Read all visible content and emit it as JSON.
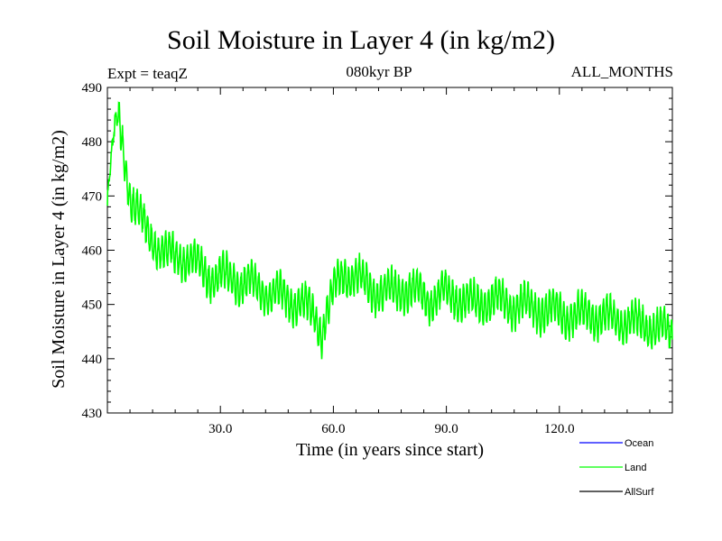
{
  "chart_data": {
    "type": "line",
    "title": "Soil Moisture in Layer 4 (in kg/m2)",
    "subtitle": "080kyr BP",
    "expt_label": "Expt = teaqZ",
    "period_label": "ALL_MONTHS",
    "xlabel": "Time (in years since start)",
    "ylabel": "Soil Moisture in Layer 4 (in kg/m2)",
    "xlim": [
      0,
      150
    ],
    "ylim": [
      430,
      490
    ],
    "x_ticks": [
      30,
      60,
      90,
      120
    ],
    "x_tick_labels": [
      "30.0",
      "60.0",
      "90.0",
      "120.0"
    ],
    "y_ticks": [
      430,
      440,
      450,
      460,
      470,
      480,
      490
    ],
    "y_tick_labels": [
      "430",
      "440",
      "450",
      "460",
      "470",
      "480",
      "490"
    ],
    "series": [
      {
        "name": "Ocean",
        "color": "#0000ff",
        "values": []
      },
      {
        "name": "Land",
        "color": "#00ff00",
        "x": [
          0,
          1,
          2,
          3,
          4,
          5,
          6,
          8,
          10,
          12,
          14,
          16,
          18,
          20,
          22,
          24,
          26,
          28,
          30,
          33,
          36,
          40,
          44,
          48,
          52,
          55,
          57,
          58,
          60,
          62,
          63,
          66,
          70,
          74,
          78,
          82,
          86,
          90,
          94,
          98,
          102,
          106,
          110,
          114,
          118,
          122,
          126,
          130,
          134,
          138,
          142,
          146,
          150
        ],
        "values": [
          469,
          476,
          482,
          484,
          480,
          475,
          470,
          467,
          464,
          462,
          460,
          459,
          459,
          459,
          458,
          457,
          456,
          455,
          455,
          455,
          454,
          453,
          452,
          451,
          450,
          448,
          445,
          448,
          452,
          455,
          456,
          455,
          453,
          452,
          453,
          452,
          451,
          452,
          451,
          450,
          451,
          450,
          450,
          449,
          449,
          448,
          448,
          448,
          447,
          447,
          446,
          446,
          444
        ]
      },
      {
        "name": "AllSurf",
        "color": "#000000",
        "values": []
      }
    ],
    "legend_position": "bottom-right"
  }
}
